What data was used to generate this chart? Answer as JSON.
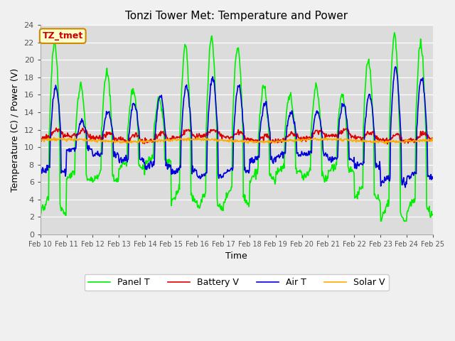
{
  "title": "Tonzi Tower Met: Temperature and Power",
  "xlabel": "Time",
  "ylabel": "Temperature (C) / Power (V)",
  "ylim": [
    0,
    24
  ],
  "yticks": [
    0,
    2,
    4,
    6,
    8,
    10,
    12,
    14,
    16,
    18,
    20,
    22,
    24
  ],
  "bg_color": "#dcdcdc",
  "fig_bg": "#f0f0f0",
  "legend_labels": [
    "Panel T",
    "Battery V",
    "Air T",
    "Solar V"
  ],
  "legend_colors": [
    "#00ee00",
    "#dd0000",
    "#0000dd",
    "#ffaa00"
  ],
  "annotation_text": "TZ_tmet",
  "annotation_box_facecolor": "#ffffcc",
  "annotation_box_edgecolor": "#cc8800",
  "annotation_text_color": "#cc0000",
  "line_width": 1.2,
  "tick_fontsize": 8,
  "label_fontsize": 9,
  "title_fontsize": 11
}
